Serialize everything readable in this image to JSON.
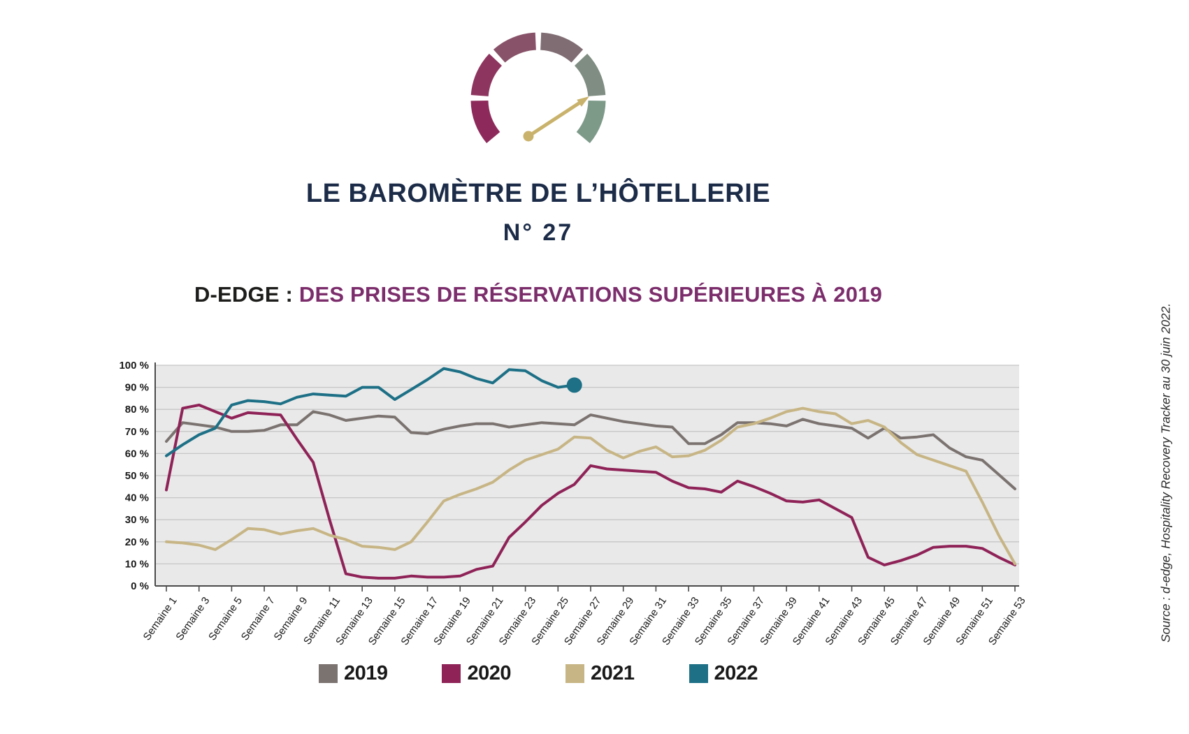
{
  "header": {
    "title": "LE BAROMÈTRE DE L’HÔTELLERIE",
    "issue": "N° 27",
    "subtitle_prefix": "D-EDGE : ",
    "subtitle_main": "DES PRISES DE RÉSERVATIONS SUPÉRIEURES À 2019"
  },
  "gauge": {
    "segment_colors": [
      "#8e2a5b",
      "#8e355f",
      "#885268",
      "#806d74",
      "#7f8d82",
      "#7d9a89"
    ],
    "needle_color": "#c9b26b"
  },
  "source_note": "Source : d-edge, Hospitality Recovery Tracker au 30 juin 2022.",
  "legend": [
    {
      "label": "2019",
      "color": "#7b7370"
    },
    {
      "label": "2020",
      "color": "#8f2358"
    },
    {
      "label": "2021",
      "color": "#c7b585"
    },
    {
      "label": "2022",
      "color": "#1d7086"
    }
  ],
  "chart_data": {
    "type": "line",
    "title": "",
    "xlabel": "",
    "ylabel": "",
    "ylim": [
      0,
      100
    ],
    "grid": true,
    "plot_bg": "#e9e9e9",
    "grid_color": "#c6c6c6",
    "axis_color": "#4a4a4a",
    "y_tick_labels": [
      "100 %",
      "90 %",
      "80 %",
      "70 %",
      "60 %",
      "50 %",
      "40 %",
      "30 %",
      "20 %",
      "10 %",
      "0 %"
    ],
    "x_tick_labels": [
      "Semaine 1",
      "Semaine 3",
      "Semaine 5",
      "Semaine 7",
      "Semaine 9",
      "Semaine 11",
      "Semaine 13",
      "Semaine 15",
      "Semaine 17",
      "Semaine 19",
      "Semaine 21",
      "Semaine 23",
      "Semaine 25",
      "Semaine 27",
      "Semaine 29",
      "Semaine 31",
      "Semaine 33",
      "Semaine 35",
      "Semaine 37",
      "Semaine 39",
      "Semaine 41",
      "Semaine 43",
      "Semaine 45",
      "Semaine 47",
      "Semaine 49",
      "Semaine 51",
      "Semaine 53"
    ],
    "weeks_total": 53,
    "legend_position": "bottom",
    "series": [
      {
        "name": "2019",
        "color": "#7b7370",
        "values": [
          65.5,
          74,
          73,
          72,
          70,
          70,
          70.5,
          73,
          73,
          79,
          77.5,
          75,
          76,
          77,
          76.5,
          69.5,
          69,
          71,
          72.5,
          73.5,
          73.5,
          72,
          73,
          74,
          73.5,
          73,
          77.5,
          76,
          74.5,
          73.5,
          72.5,
          72,
          64.5,
          64.5,
          68.5,
          74,
          74,
          73.5,
          72.5,
          75.5,
          73.5,
          72.5,
          71.5,
          67,
          71.5,
          67,
          67.5,
          68.5,
          62.5,
          58.5,
          57,
          50.5,
          44
        ]
      },
      {
        "name": "2020",
        "color": "#8f2358",
        "values": [
          43.5,
          80.5,
          82,
          79,
          76,
          78.5,
          78,
          77.5,
          66.5,
          56,
          30,
          5.5,
          4,
          3.5,
          3.5,
          4.5,
          4,
          4,
          4.5,
          7.5,
          9,
          22,
          29,
          36.5,
          42,
          46,
          54.5,
          53,
          52.5,
          52,
          51.5,
          47.5,
          44.5,
          44,
          42.5,
          47.5,
          45,
          42,
          38.5,
          38,
          39,
          35,
          31,
          13,
          9.5,
          11.5,
          14,
          17.5,
          18,
          18,
          17,
          13,
          9.5
        ]
      },
      {
        "name": "2021",
        "color": "#c7b585",
        "values": [
          20,
          19.5,
          18.5,
          16.5,
          21,
          26,
          25.5,
          23.5,
          25,
          26,
          23,
          21,
          18,
          17.5,
          16.5,
          20,
          29,
          38.5,
          41.5,
          44,
          47,
          52.5,
          57,
          59.5,
          62,
          67.5,
          67,
          61.5,
          58,
          61,
          63,
          58.5,
          59,
          61.5,
          66,
          72,
          73.5,
          76,
          79,
          80.5,
          79,
          78,
          73.5,
          75,
          72,
          65,
          59.5,
          57,
          54.5,
          52,
          38,
          23,
          10
        ]
      },
      {
        "name": "2022",
        "color": "#1d7086",
        "endpoint_dot": true,
        "values": [
          59,
          64,
          68.5,
          71.5,
          82,
          84,
          83.5,
          82.5,
          85.5,
          87,
          86.5,
          86,
          90,
          90,
          84.5,
          89,
          93.5,
          98.5,
          97,
          94,
          92,
          98,
          97.5,
          93,
          90,
          91
        ]
      }
    ]
  }
}
